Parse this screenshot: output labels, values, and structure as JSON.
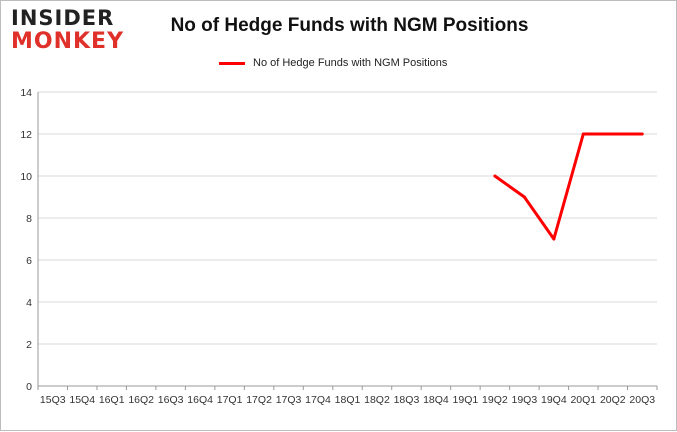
{
  "logo": {
    "line1": "INSIDER",
    "line2": "MONKEY"
  },
  "colors": {
    "series": "#ff0000",
    "grid": "#d9d9d9",
    "axis": "#999999"
  },
  "chart_data": {
    "type": "line",
    "title": "No of Hedge Funds with NGM Positions",
    "xlabel": "",
    "ylabel": "",
    "ylim": [
      0,
      14
    ],
    "yticks": [
      0,
      2,
      4,
      6,
      8,
      10,
      12,
      14
    ],
    "grid": true,
    "legend_position": "top",
    "categories": [
      "15Q3",
      "15Q4",
      "16Q1",
      "16Q2",
      "16Q3",
      "16Q4",
      "17Q1",
      "17Q2",
      "17Q3",
      "17Q4",
      "18Q1",
      "18Q2",
      "18Q3",
      "18Q4",
      "19Q1",
      "19Q2",
      "19Q3",
      "19Q4",
      "20Q1",
      "20Q2",
      "20Q3"
    ],
    "series": [
      {
        "name": "No of Hedge Funds with NGM Positions",
        "values": [
          null,
          null,
          null,
          null,
          null,
          null,
          null,
          null,
          null,
          null,
          null,
          null,
          null,
          null,
          null,
          10,
          9,
          7,
          12,
          12,
          12
        ]
      }
    ]
  }
}
